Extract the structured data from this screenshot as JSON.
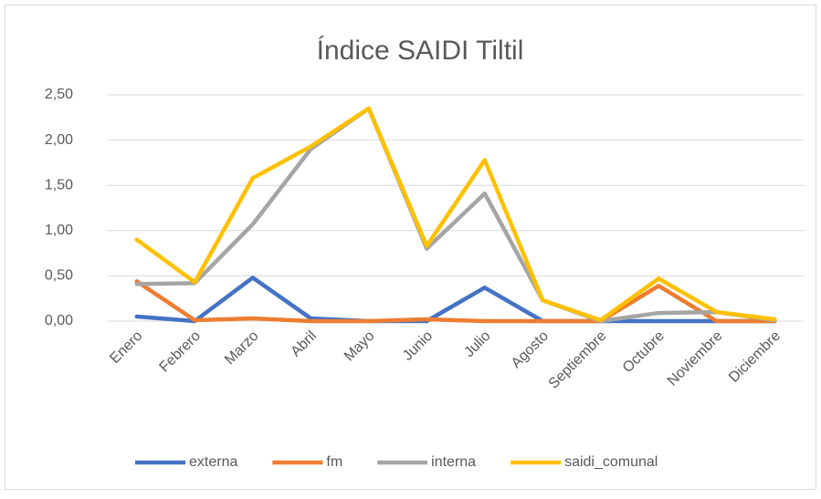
{
  "chart_data": {
    "type": "line",
    "title": "Índice SAIDI Tiltil",
    "categories": [
      "Enero",
      "Febrero",
      "Marzo",
      "Abril",
      "Mayo",
      "Junio",
      "Julio",
      "Agosto",
      "Septiembre",
      "Octubre",
      "Noviembre",
      "Diciembre"
    ],
    "series": [
      {
        "name": "externa",
        "color": "#4472c4",
        "values": [
          0.05,
          0,
          0.48,
          0.03,
          0,
          0,
          0.37,
          0,
          0,
          0,
          0,
          0
        ]
      },
      {
        "name": "fm",
        "color": "#ed7d31",
        "values": [
          0.44,
          0.01,
          0.03,
          0,
          0,
          0.02,
          0,
          0,
          0,
          0.39,
          0,
          0
        ]
      },
      {
        "name": "interna",
        "color": "#a5a5a5",
        "values": [
          0.41,
          0.42,
          1.07,
          1.9,
          2.35,
          0.8,
          1.41,
          0.23,
          0,
          0.09,
          0.1,
          0.01
        ]
      },
      {
        "name": "saidi_comunal",
        "color": "#ffc000",
        "values": [
          0.9,
          0.43,
          1.58,
          1.93,
          2.35,
          0.83,
          1.78,
          0.23,
          0.01,
          0.47,
          0.1,
          0.02
        ]
      }
    ],
    "ylim": [
      0,
      2.5
    ],
    "yticks": [
      {
        "value": 0,
        "label": "0,00"
      },
      {
        "value": 0.5,
        "label": "0,50"
      },
      {
        "value": 1,
        "label": "1,00"
      },
      {
        "value": 1.5,
        "label": "1,50"
      },
      {
        "value": 2,
        "label": "2,00"
      },
      {
        "value": 2.5,
        "label": "2,50"
      }
    ],
    "grid": true,
    "legend": "bottom"
  }
}
